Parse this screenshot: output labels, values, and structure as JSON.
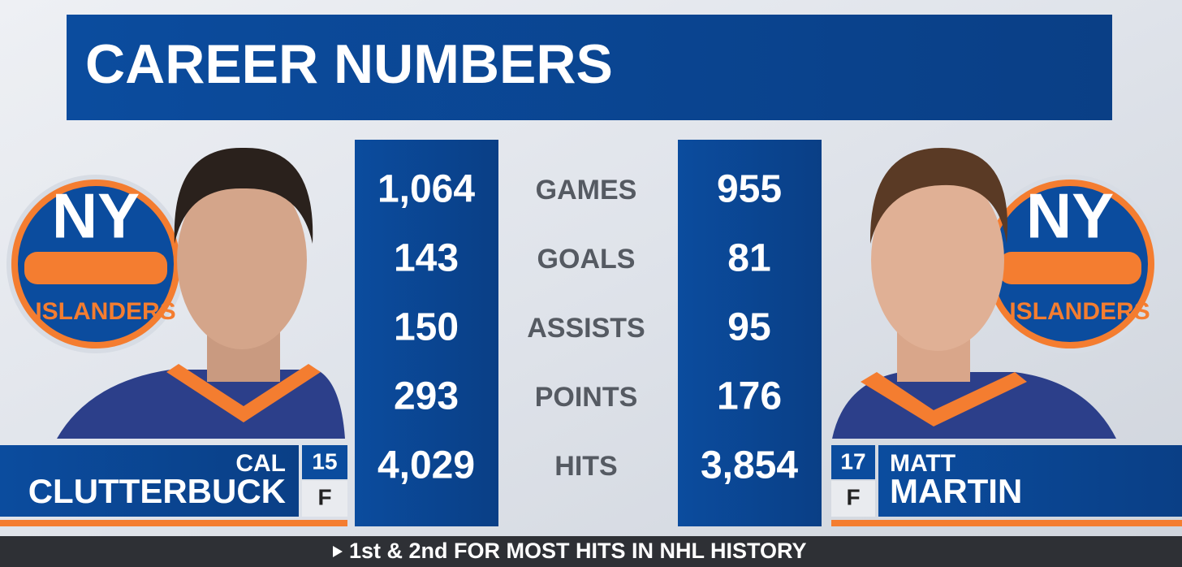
{
  "title": "CAREER NUMBERS",
  "logo": {
    "mark": "NY",
    "wordmark": "ISLANDERS"
  },
  "players": [
    {
      "first": "CAL",
      "last": "CLUTTERBUCK",
      "number": "15",
      "position": "F"
    },
    {
      "first": "MATT",
      "last": "MARTIN",
      "number": "17",
      "position": "F"
    }
  ],
  "stats": [
    {
      "label": "GAMES",
      "left": "1,064",
      "right": "955"
    },
    {
      "label": "GOALS",
      "left": "143",
      "right": "81"
    },
    {
      "label": "ASSISTS",
      "left": "150",
      "right": "95"
    },
    {
      "label": "POINTS",
      "left": "293",
      "right": "176"
    },
    {
      "label": "HITS",
      "left": "4,029",
      "right": "3,854"
    }
  ],
  "footer": "1st & 2nd FOR MOST HITS IN NHL HISTORY"
}
